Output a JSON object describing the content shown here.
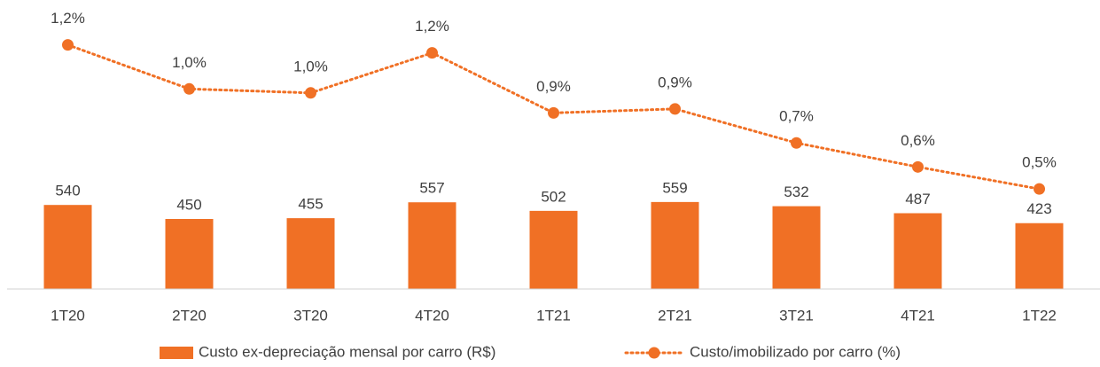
{
  "chart_data": {
    "type": "bar_line",
    "categories": [
      "1T20",
      "2T20",
      "3T20",
      "4T20",
      "1T21",
      "2T21",
      "3T21",
      "4T21",
      "1T22"
    ],
    "series": [
      {
        "name": "Custo ex-depreciação mensal por carro (R$)",
        "type": "bar",
        "color": "#f07025",
        "values": [
          540,
          450,
          455,
          557,
          502,
          559,
          532,
          487,
          423
        ]
      },
      {
        "name": "Custo/imobilizado por carro (%)",
        "type": "line",
        "axis": "y2",
        "color": "#f07025",
        "values": [
          1.22,
          1.0,
          0.98,
          1.18,
          0.88,
          0.9,
          0.73,
          0.61,
          0.5
        ],
        "value_labels": [
          "1,2%",
          "1,0%",
          "1,0%",
          "1,2%",
          "0,9%",
          "0,9%",
          "0,7%",
          "0,6%",
          "0,5%"
        ]
      }
    ],
    "ylim": [
      0,
      1800
    ],
    "y2lim": [
      0,
      1.4
    ],
    "legend": "bottom"
  }
}
